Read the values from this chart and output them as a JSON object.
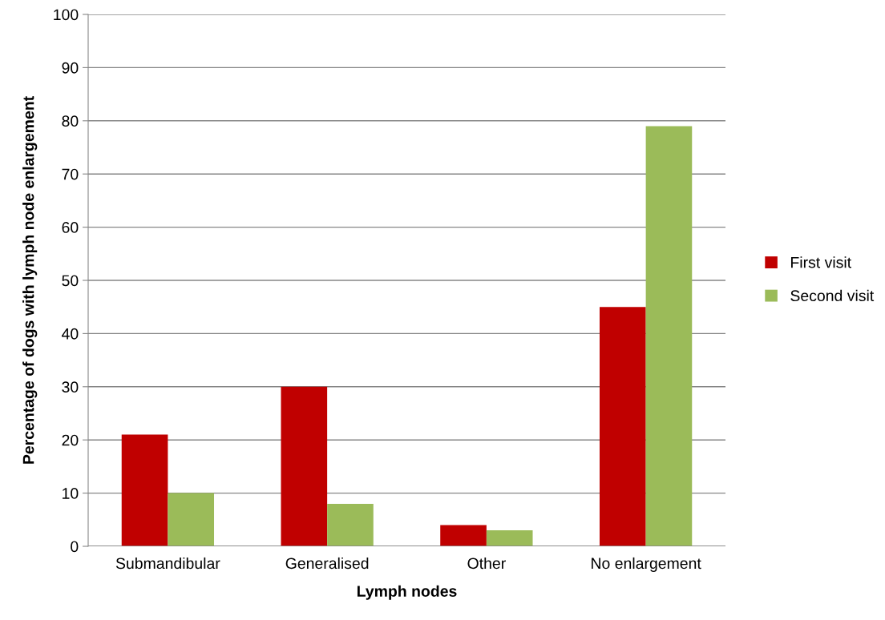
{
  "chart_data": {
    "type": "bar",
    "xlabel": "Lymph nodes",
    "ylabel": "Percentage of dogs with lymph node enlargement",
    "categories": [
      "Submandibular",
      "Generalised",
      "Other",
      "No enlargement"
    ],
    "series": [
      {
        "name": "First visit",
        "color": "#c00000",
        "values": [
          21,
          30,
          4,
          45
        ]
      },
      {
        "name": "Second visit",
        "color": "#9bbb59",
        "values": [
          10,
          8,
          3,
          79
        ]
      }
    ],
    "ylim": [
      0,
      100
    ],
    "yticks": [
      0,
      10,
      20,
      30,
      40,
      50,
      60,
      70,
      80,
      90,
      100
    ],
    "grid": "y",
    "legend": "right"
  }
}
